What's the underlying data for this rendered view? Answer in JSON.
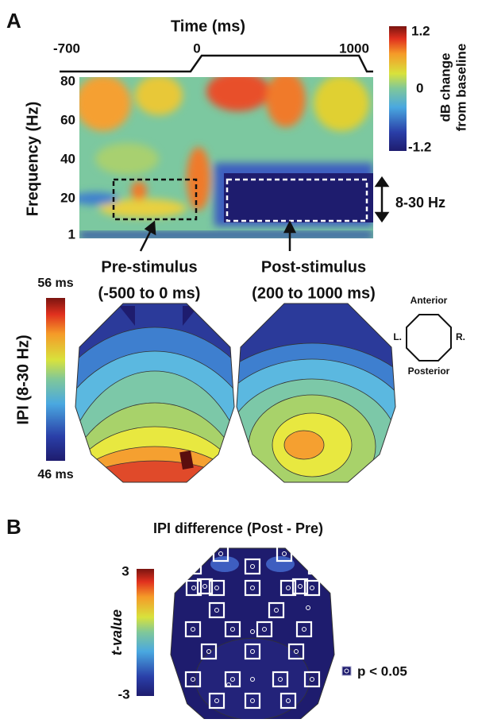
{
  "panel_a": {
    "label": "A",
    "time_axis": {
      "title": "Time (ms)",
      "ticks": [
        "-700",
        "0",
        "1000"
      ]
    },
    "frequency_axis": {
      "title": "Frequency (Hz)",
      "ticks": [
        "80",
        "60",
        "40",
        "20",
        "1"
      ]
    },
    "colorbar": {
      "max": "1.2",
      "mid": "0",
      "min": "-1.2",
      "title_lines": [
        "dB change",
        "from baseline"
      ]
    },
    "band_label": "8-30 Hz",
    "pre": {
      "title": "Pre-stimulus",
      "range": "(-500 to 0 ms)"
    },
    "post": {
      "title": "Post-stimulus",
      "range": "(200 to 1000 ms)"
    },
    "ipi_colorbar": {
      "max": "56 ms",
      "min": "46 ms",
      "title": "IPI (8-30 Hz)"
    },
    "orientation": {
      "anterior": "Anterior",
      "posterior": "Posterior",
      "left": "L.",
      "right": "R."
    }
  },
  "panel_b": {
    "label": "B",
    "title": "IPI difference (Post - Pre)",
    "colorbar": {
      "max": "3",
      "min": "-3",
      "title": "t-value"
    },
    "legend": "p < 0.05"
  }
}
